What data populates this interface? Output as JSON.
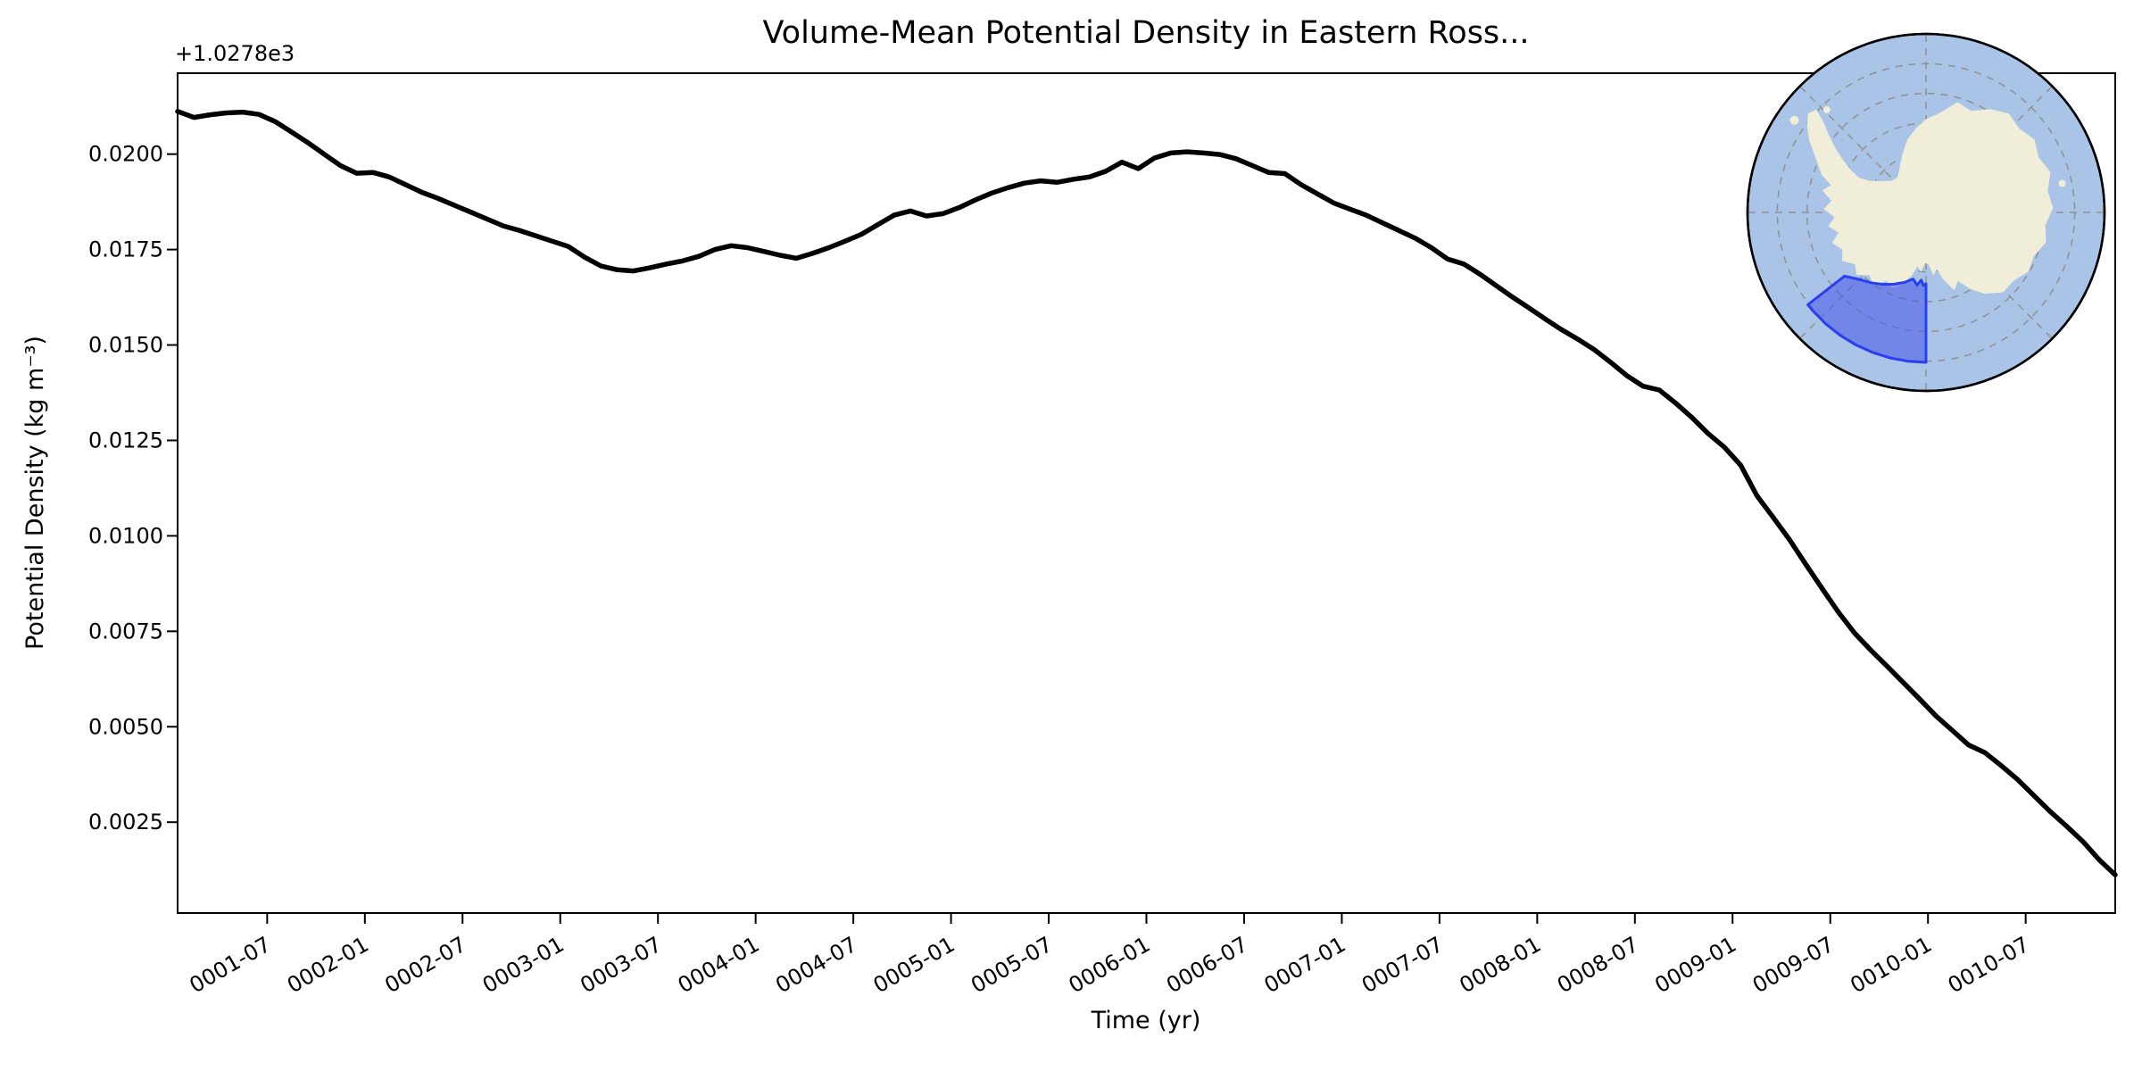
{
  "title": "Volume-Mean Potential Density in Eastern Ross...",
  "axes": {
    "offset_text": "+1.0278e3",
    "xlabel": "Time (yr)",
    "ylabel": "Potential Density (kg m⁻³)",
    "x_tick_labels": [
      "0001-07",
      "0002-01",
      "0002-07",
      "0003-01",
      "0003-07",
      "0004-01",
      "0004-07",
      "0005-01",
      "0005-07",
      "0006-01",
      "0006-07",
      "0007-01",
      "0007-07",
      "0008-01",
      "0008-07",
      "0009-01",
      "0009-07",
      "0010-01",
      "0010-07"
    ],
    "y_tick_labels": [
      "0.0200",
      "0.0175",
      "0.0150",
      "0.0125",
      "0.0100",
      "0.0075",
      "0.0050",
      "0.0025"
    ]
  },
  "chart_data": {
    "type": "line",
    "title": "Volume-Mean Potential Density in Eastern Ross...",
    "xlabel": "Time (yr)",
    "ylabel": "Potential Density (kg m⁻³)",
    "y_axis_offset": 1027.8,
    "x_start": "0001-01",
    "x_end": "0010-12",
    "x_frequency": "monthly",
    "n_points": 120,
    "ylim": [
      0.00012,
      0.02212
    ],
    "y_ticks": [
      0.02,
      0.0175,
      0.015,
      0.0125,
      0.01,
      0.0075,
      0.005,
      0.0025
    ],
    "x_tick_month_positions": [
      5.5,
      11.5,
      17.5,
      23.5,
      29.5,
      35.5,
      41.5,
      47.5,
      53.5,
      59.5,
      65.5,
      71.5,
      77.5,
      83.5,
      89.5,
      95.5,
      101.5,
      107.5,
      113.5
    ],
    "grid": false,
    "legend": "none",
    "series": [
      {
        "name": "volume-mean-potential-density",
        "color": "#000000",
        "linewidth": 5.5,
        "values": [
          0.02112,
          0.02096,
          0.02103,
          0.02108,
          0.0211,
          0.02104,
          0.02085,
          0.02058,
          0.0203,
          0.02,
          0.0197,
          0.0195,
          0.01952,
          0.0194,
          0.0192,
          0.019,
          0.01884,
          0.01866,
          0.01848,
          0.0183,
          0.01812,
          0.018,
          0.01786,
          0.01772,
          0.01758,
          0.0173,
          0.01707,
          0.01697,
          0.01694,
          0.01702,
          0.01712,
          0.0172,
          0.01732,
          0.0175,
          0.0176,
          0.01755,
          0.01745,
          0.01735,
          0.01727,
          0.0174,
          0.01755,
          0.01772,
          0.0179,
          0.01815,
          0.0184,
          0.01851,
          0.01838,
          0.01844,
          0.0186,
          0.0188,
          0.01898,
          0.01912,
          0.01924,
          0.0193,
          0.01926,
          0.01934,
          0.0194,
          0.01955,
          0.01979,
          0.01962,
          0.0199,
          0.02003,
          0.02006,
          0.02003,
          0.01999,
          0.01988,
          0.0197,
          0.01952,
          0.01949,
          0.0192,
          0.01896,
          0.01872,
          0.01856,
          0.0184,
          0.0182,
          0.018,
          0.0178,
          0.01755,
          0.01725,
          0.01712,
          0.01685,
          0.01655,
          0.01625,
          0.01597,
          0.01568,
          0.0154,
          0.01515,
          0.01488,
          0.01455,
          0.0142,
          0.01392,
          0.01382,
          0.01348,
          0.0131,
          0.01268,
          0.01232,
          0.01185,
          0.01105,
          0.01048,
          0.0099,
          0.00925,
          0.00862,
          0.008,
          0.00745,
          0.007,
          0.00658,
          0.00615,
          0.00572,
          0.00528,
          0.0049,
          0.00452,
          0.00432,
          0.00398,
          0.00362,
          0.0032,
          0.00278,
          0.0024,
          0.002,
          0.00152,
          0.00112
        ]
      }
    ]
  },
  "inset_map": {
    "name": "antarctica-inset-map",
    "projection": "south-polar-stereographic",
    "highlighted_region": "Eastern Ross Sea",
    "graticule_circles": 5,
    "meridians": 8,
    "colors": {
      "ocean": "#a9c4e6",
      "land": "#f0edd9",
      "region_fill": "#4353e8",
      "region_edge": "#2b3ff0",
      "graticule": "#909090",
      "border": "#000000"
    }
  }
}
